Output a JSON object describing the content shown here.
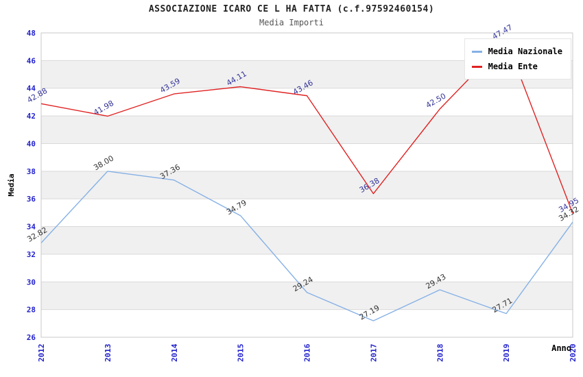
{
  "chart_data": {
    "type": "line",
    "title": "ASSOCIAZIONE ICARO CE L HA FATTA (c.f.97592460154)",
    "subtitle": "Media Importi",
    "xlabel": "Anno",
    "ylabel": "Media",
    "x": [
      "2012",
      "2013",
      "2014",
      "2015",
      "2016",
      "2017",
      "2018",
      "2019",
      "2020"
    ],
    "series": [
      {
        "name": "Media Nazionale",
        "color": "#85b0e6",
        "label_color": "#333333",
        "values": [
          32.82,
          38.0,
          37.36,
          34.79,
          29.24,
          27.19,
          29.43,
          27.71,
          34.32
        ]
      },
      {
        "name": "Media Ente",
        "color": "#e02222",
        "label_color": "#333399",
        "values": [
          42.88,
          41.98,
          43.59,
          44.11,
          43.46,
          36.38,
          42.5,
          47.47,
          34.95
        ]
      }
    ],
    "ylim": [
      26,
      48
    ],
    "ytick_step": 2,
    "legend_position": "top-right",
    "grid": true,
    "alternating_bands": true,
    "colors": {
      "tick_label": "#2222cc",
      "band": "#f0f0f0",
      "grid": "#d9d9d9",
      "border": "#c9c9c9"
    }
  }
}
